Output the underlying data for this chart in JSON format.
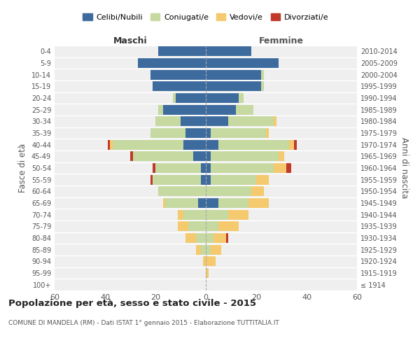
{
  "age_groups": [
    "100+",
    "95-99",
    "90-94",
    "85-89",
    "80-84",
    "75-79",
    "70-74",
    "65-69",
    "60-64",
    "55-59",
    "50-54",
    "45-49",
    "40-44",
    "35-39",
    "30-34",
    "25-29",
    "20-24",
    "15-19",
    "10-14",
    "5-9",
    "0-4"
  ],
  "birth_years": [
    "≤ 1914",
    "1915-1919",
    "1920-1924",
    "1925-1929",
    "1930-1934",
    "1935-1939",
    "1940-1944",
    "1945-1949",
    "1950-1954",
    "1955-1959",
    "1960-1964",
    "1965-1969",
    "1970-1974",
    "1975-1979",
    "1980-1984",
    "1985-1989",
    "1990-1994",
    "1995-1999",
    "2000-2004",
    "2005-2009",
    "2010-2014"
  ],
  "male_celibi": [
    0,
    0,
    0,
    0,
    0,
    0,
    0,
    3,
    0,
    2,
    2,
    5,
    9,
    8,
    10,
    17,
    12,
    21,
    22,
    27,
    19
  ],
  "male_coniugati": [
    0,
    0,
    0,
    2,
    4,
    7,
    9,
    13,
    19,
    19,
    18,
    24,
    28,
    14,
    10,
    2,
    1,
    0,
    0,
    0,
    0
  ],
  "male_vedovi": [
    0,
    0,
    1,
    2,
    4,
    4,
    2,
    1,
    0,
    0,
    0,
    0,
    1,
    0,
    0,
    0,
    0,
    0,
    0,
    0,
    0
  ],
  "male_divorziati": [
    0,
    0,
    0,
    0,
    0,
    0,
    0,
    0,
    0,
    1,
    1,
    1,
    1,
    0,
    0,
    0,
    0,
    0,
    0,
    0,
    0
  ],
  "female_celibi": [
    0,
    0,
    0,
    0,
    0,
    0,
    0,
    5,
    0,
    2,
    2,
    2,
    5,
    2,
    9,
    12,
    13,
    22,
    22,
    29,
    18
  ],
  "female_coniugati": [
    0,
    0,
    0,
    2,
    3,
    5,
    9,
    12,
    18,
    18,
    25,
    27,
    28,
    22,
    18,
    7,
    2,
    1,
    1,
    0,
    0
  ],
  "female_vedovi": [
    0,
    1,
    4,
    4,
    5,
    8,
    8,
    8,
    5,
    5,
    5,
    2,
    2,
    1,
    1,
    0,
    0,
    0,
    0,
    0,
    0
  ],
  "female_divorziati": [
    0,
    0,
    0,
    0,
    1,
    0,
    0,
    0,
    0,
    0,
    2,
    0,
    1,
    0,
    0,
    0,
    0,
    0,
    0,
    0,
    0
  ],
  "colors": {
    "celibi": "#3d6b9e",
    "coniugati": "#c5d9a0",
    "vedovi": "#f5c96d",
    "divorziati": "#c0392b"
  },
  "xlim": 60,
  "title": "Popolazione per età, sesso e stato civile - 2015",
  "subtitle": "COMUNE DI MANDELA (RM) - Dati ISTAT 1° gennaio 2015 - Elaborazione TUTTITALIA.IT",
  "ylabel_left": "Fasce di età",
  "ylabel_right": "Anni di nascita",
  "label_maschi": "Maschi",
  "label_femmine": "Femmine",
  "bg_color": "#efefef",
  "bar_height": 0.85,
  "legend_labels": [
    "Celibi/Nubili",
    "Coniugati/e",
    "Vedovi/e",
    "Divorziati/e"
  ]
}
